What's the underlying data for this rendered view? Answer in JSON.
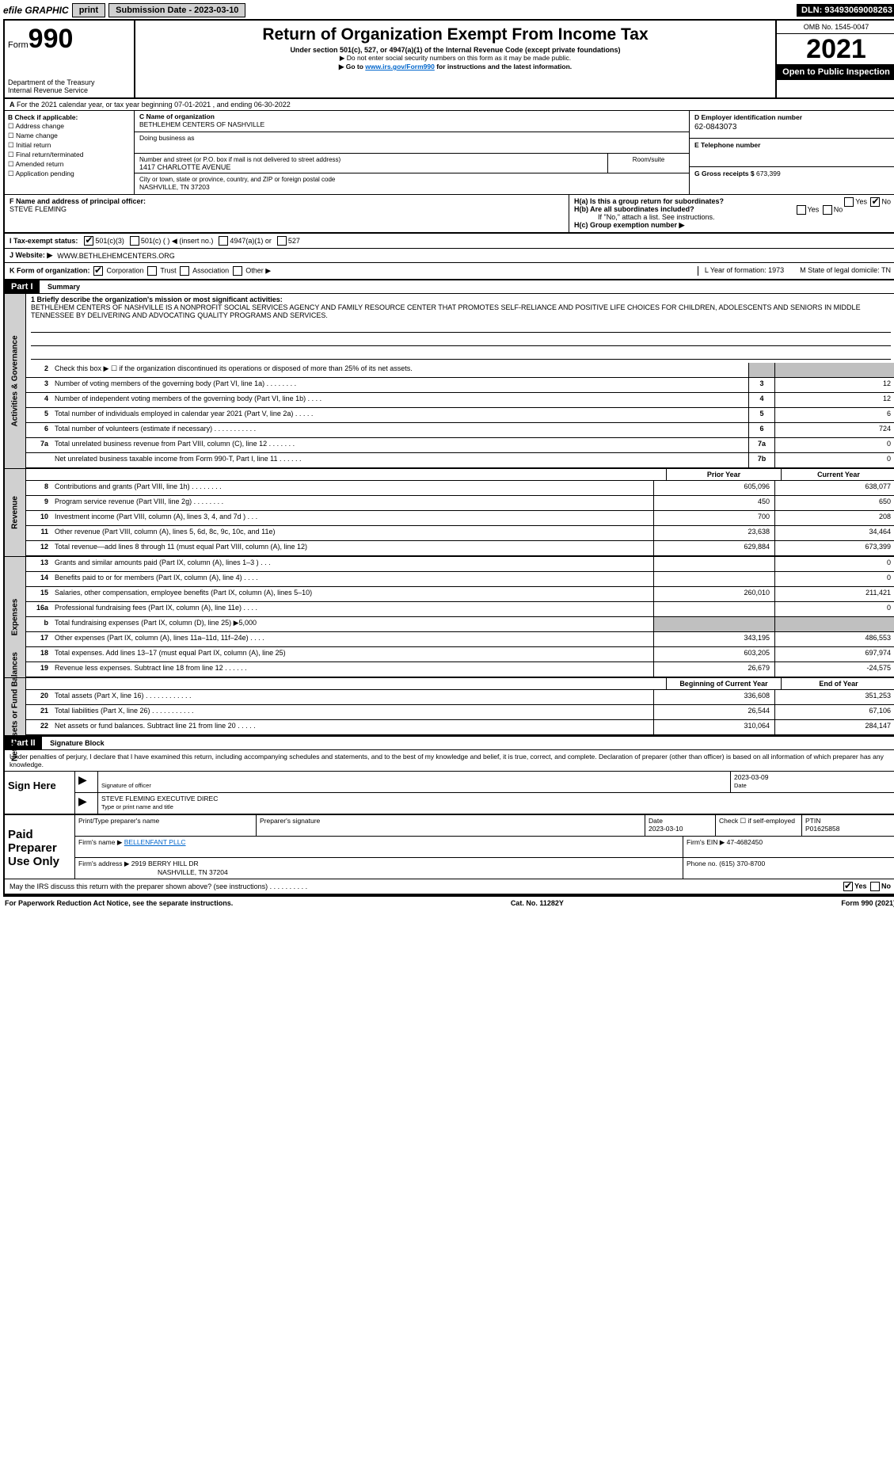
{
  "topbar": {
    "efile": "efile GRAPHIC",
    "print": "print",
    "submission": "Submission Date - 2023-03-10",
    "dln": "DLN: 93493069008263"
  },
  "header": {
    "form_word": "Form",
    "form_num": "990",
    "dept": "Department of the Treasury\nInternal Revenue Service",
    "title": "Return of Organization Exempt From Income Tax",
    "subtitle": "Under section 501(c), 527, or 4947(a)(1) of the Internal Revenue Code (except private foundations)",
    "note1": "▶ Do not enter social security numbers on this form as it may be made public.",
    "note2_pre": "▶ Go to ",
    "note2_link": "www.irs.gov/Form990",
    "note2_post": " for instructions and the latest information.",
    "omb": "OMB No. 1545-0047",
    "year": "2021",
    "inspect": "Open to Public Inspection"
  },
  "row_a": "For the 2021 calendar year, or tax year beginning 07-01-2021    , and ending 06-30-2022",
  "b": {
    "label": "B Check if applicable:",
    "items": [
      "Address change",
      "Name change",
      "Initial return",
      "Final return/terminated",
      "Amended return",
      "Application pending"
    ]
  },
  "c": {
    "label": "C Name of organization",
    "name": "BETHLEHEM CENTERS OF NASHVILLE",
    "dba_lbl": "Doing business as",
    "addr_lbl": "Number and street (or P.O. box if mail is not delivered to street address)",
    "room_lbl": "Room/suite",
    "addr": "1417 CHARLOTTE AVENUE",
    "city_lbl": "City or town, state or province, country, and ZIP or foreign postal code",
    "city": "NASHVILLE, TN  37203"
  },
  "d": {
    "label": "D Employer identification number",
    "val": "62-0843073"
  },
  "e": {
    "label": "E Telephone number",
    "val": ""
  },
  "g": {
    "label": "G Gross receipts $",
    "val": "673,399"
  },
  "f": {
    "label": "F  Name and address of principal officer:",
    "name": "STEVE FLEMING"
  },
  "h": {
    "a": "H(a)  Is this a group return for subordinates?",
    "b": "H(b)  Are all subordinates included?",
    "b_note": "If \"No,\" attach a list. See instructions.",
    "c": "H(c)  Group exemption number ▶",
    "yes": "Yes",
    "no": "No"
  },
  "i": {
    "label": "I  Tax-exempt status:",
    "o1": "501(c)(3)",
    "o2": "501(c) (   ) ◀ (insert no.)",
    "o3": "4947(a)(1) or",
    "o4": "527"
  },
  "j": {
    "label": "J  Website: ▶",
    "val": "WWW.BETHLEHEMCENTERS.ORG"
  },
  "k": {
    "label": "K Form of organization:",
    "opts": [
      "Corporation",
      "Trust",
      "Association",
      "Other ▶"
    ],
    "l": "L Year of formation: 1973",
    "m": "M State of legal domicile: TN"
  },
  "part1": {
    "hdr": "Part I",
    "title": "Summary"
  },
  "mission": {
    "lbl": "1  Briefly describe the organization's mission or most significant activities:",
    "text": "BETHLEHEM CENTERS OF NASHVILLE IS A NONPROFIT SOCIAL SERVICES AGENCY AND FAMILY RESOURCE CENTER THAT PROMOTES SELF-RELIANCE AND POSITIVE LIFE CHOICES FOR CHILDREN, ADOLESCENTS AND SENIORS IN MIDDLE TENNESSEE BY DELIVERING AND ADVOCATING QUALITY PROGRAMS AND SERVICES."
  },
  "gov_lines": [
    {
      "n": "2",
      "t": "Check this box ▶ ☐  if the organization discontinued its operations or disposed of more than 25% of its net assets.",
      "box": "",
      "v": ""
    },
    {
      "n": "3",
      "t": "Number of voting members of the governing body (Part VI, line 1a)   .    .    .    .    .    .    .    .",
      "box": "3",
      "v": "12"
    },
    {
      "n": "4",
      "t": "Number of independent voting members of the governing body (Part VI, line 1b)   .    .    .    .",
      "box": "4",
      "v": "12"
    },
    {
      "n": "5",
      "t": "Total number of individuals employed in calendar year 2021 (Part V, line 2a)   .    .    .    .    .",
      "box": "5",
      "v": "6"
    },
    {
      "n": "6",
      "t": "Total number of volunteers (estimate if necessary)    .    .    .    .    .    .    .    .    .    .    .",
      "box": "6",
      "v": "724"
    },
    {
      "n": "7a",
      "t": "Total unrelated business revenue from Part VIII, column (C), line 12   .    .    .    .    .    .    .",
      "box": "7a",
      "v": "0"
    },
    {
      "n": "",
      "t": "Net unrelated business taxable income from Form 990-T, Part I, line 11   .    .    .    .    .    .",
      "box": "7b",
      "v": "0"
    }
  ],
  "yr": {
    "prior": "Prior Year",
    "current": "Current Year"
  },
  "rev_lines": [
    {
      "n": "8",
      "t": "Contributions and grants (Part VIII, line 1h)   .    .    .    .    .    .    .    .",
      "p": "605,096",
      "c": "638,077"
    },
    {
      "n": "9",
      "t": "Program service revenue (Part VIII, line 2g)   .    .    .    .    .    .    .    .",
      "p": "450",
      "c": "650"
    },
    {
      "n": "10",
      "t": "Investment income (Part VIII, column (A), lines 3, 4, and 7d )   .    .    .",
      "p": "700",
      "c": "208"
    },
    {
      "n": "11",
      "t": "Other revenue (Part VIII, column (A), lines 5, 6d, 8c, 9c, 10c, and 11e)",
      "p": "23,638",
      "c": "34,464"
    },
    {
      "n": "12",
      "t": "Total revenue—add lines 8 through 11 (must equal Part VIII, column (A), line 12)",
      "p": "629,884",
      "c": "673,399"
    }
  ],
  "exp_lines": [
    {
      "n": "13",
      "t": "Grants and similar amounts paid (Part IX, column (A), lines 1–3 )   .    .    .",
      "p": "",
      "c": "0"
    },
    {
      "n": "14",
      "t": "Benefits paid to or for members (Part IX, column (A), line 4)   .    .    .    .",
      "p": "",
      "c": "0"
    },
    {
      "n": "15",
      "t": "Salaries, other compensation, employee benefits (Part IX, column (A), lines 5–10)",
      "p": "260,010",
      "c": "211,421"
    },
    {
      "n": "16a",
      "t": "Professional fundraising fees (Part IX, column (A), line 11e)   .    .    .    .",
      "p": "",
      "c": "0"
    },
    {
      "n": "b",
      "t": "Total fundraising expenses (Part IX, column (D), line 25) ▶5,000",
      "p": "grey",
      "c": "grey"
    },
    {
      "n": "17",
      "t": "Other expenses (Part IX, column (A), lines 11a–11d, 11f–24e)   .    .    .    .",
      "p": "343,195",
      "c": "486,553"
    },
    {
      "n": "18",
      "t": "Total expenses. Add lines 13–17 (must equal Part IX, column (A), line 25)",
      "p": "603,205",
      "c": "697,974"
    },
    {
      "n": "19",
      "t": "Revenue less expenses. Subtract line 18 from line 12   .    .    .    .    .    .",
      "p": "26,679",
      "c": "-24,575"
    }
  ],
  "na": {
    "beg": "Beginning of Current Year",
    "end": "End of Year"
  },
  "na_lines": [
    {
      "n": "20",
      "t": "Total assets (Part X, line 16)   .    .    .    .    .    .    .    .    .    .    .    .",
      "p": "336,608",
      "c": "351,253"
    },
    {
      "n": "21",
      "t": "Total liabilities (Part X, line 26)   .    .    .    .    .    .    .    .    .    .    .",
      "p": "26,544",
      "c": "67,106"
    },
    {
      "n": "22",
      "t": "Net assets or fund balances. Subtract line 21 from line 20   .    .    .    .    .",
      "p": "310,064",
      "c": "284,147"
    }
  ],
  "part2": {
    "hdr": "Part II",
    "title": "Signature Block"
  },
  "penalties": "Under penalties of perjury, I declare that I have examined this return, including accompanying schedules and statements, and to the best of my knowledge and belief, it is true, correct, and complete. Declaration of preparer (other than officer) is based on all information of which preparer has any knowledge.",
  "sign": {
    "here": "Sign Here",
    "sig_lbl": "Signature of officer",
    "date_lbl": "Date",
    "date": "2023-03-09",
    "name": "STEVE FLEMING  EXECUTIVE DIREC",
    "name_lbl": "Type or print name and title"
  },
  "paid": {
    "title": "Paid Preparer Use Only",
    "h1": "Print/Type preparer's name",
    "h2": "Preparer's signature",
    "h3": "Date",
    "h4": "Check ☐ if self-employed",
    "h5": "PTIN",
    "date": "2023-03-10",
    "ptin": "P01625858",
    "firm_lbl": "Firm's name    ▶",
    "firm": "BELLENFANT PLLC",
    "ein_lbl": "Firm's EIN ▶",
    "ein": "47-4682450",
    "addr_lbl": "Firm's address ▶",
    "addr1": "2919 BERRY HILL DR",
    "addr2": "NASHVILLE, TN  37204",
    "phone_lbl": "Phone no.",
    "phone": "(615) 370-8700"
  },
  "may": "May the IRS discuss this return with the preparer shown above? (see instructions)   .    .    .    .    .    .    .    .    .    .",
  "footer": {
    "l": "For Paperwork Reduction Act Notice, see the separate instructions.",
    "m": "Cat. No. 11282Y",
    "r": "Form 990 (2021)"
  },
  "vlabels": {
    "gov": "Activities & Governance",
    "rev": "Revenue",
    "exp": "Expenses",
    "na": "Net Assets or Fund Balances"
  }
}
